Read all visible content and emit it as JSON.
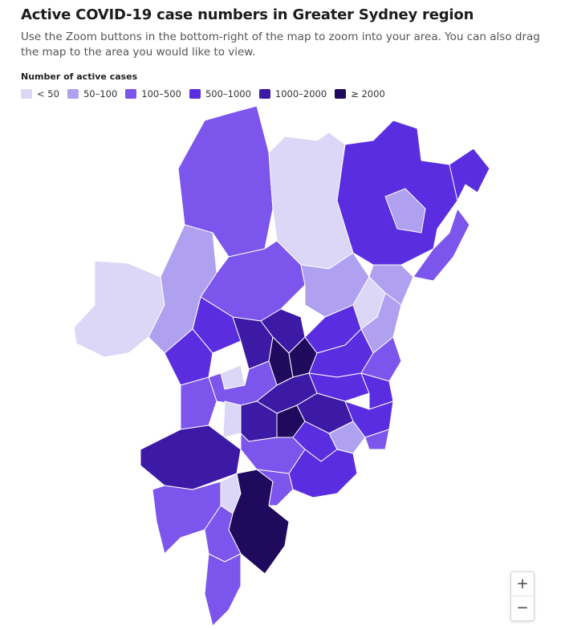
{
  "header": {
    "title": "Active COVID-19 case numbers in Greater Sydney region",
    "subtitle": "Use the Zoom buttons in the bottom-right of the map to zoom into your area. You can also drag the map to the area you would like to view."
  },
  "legend": {
    "title": "Number of active cases",
    "items": [
      {
        "label": "< 50",
        "color": "#dcd6f7"
      },
      {
        "label": "50–100",
        "color": "#b0a0f0"
      },
      {
        "label": "100–500",
        "color": "#7c55ec"
      },
      {
        "label": "500–1000",
        "color": "#5a2ee0"
      },
      {
        "label": "1000–2000",
        "color": "#3d1aa6"
      },
      {
        "label": "≥ 2000",
        "color": "#200a5e"
      }
    ]
  },
  "controls": {
    "zoom_in": "+",
    "zoom_out": "−"
  }
}
